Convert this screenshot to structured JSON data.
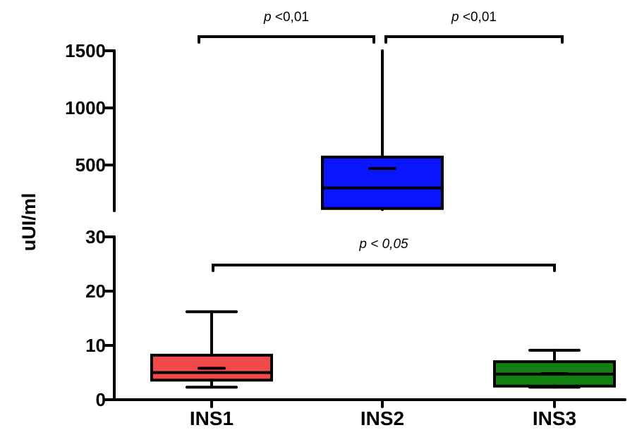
{
  "chart_data": {
    "type": "box",
    "ylabel": "uUI/ml",
    "broken_y_axis": true,
    "y_segments": [
      {
        "range": [
          0,
          30
        ],
        "ticks": [
          0,
          10,
          20,
          30
        ],
        "tick_labels": [
          "0",
          "10",
          "20",
          "30"
        ]
      },
      {
        "range": [
          100,
          1500
        ],
        "ticks": [
          500,
          1000,
          1500
        ],
        "tick_labels": [
          "500",
          "1000",
          "1500"
        ]
      }
    ],
    "categories": [
      "INS1",
      "INS2",
      "INS3"
    ],
    "boxes": [
      {
        "category": "INS1",
        "color": "#f04a4a",
        "min": 2.3,
        "q1": 3.6,
        "median": 5.0,
        "mean": 5.8,
        "q3": 8.2,
        "max": 16.2
      },
      {
        "category": "INS2",
        "color": "#0a14ff",
        "min": 110,
        "q1": 120,
        "median": 300,
        "mean": 470,
        "q3": 570,
        "max": 1500
      },
      {
        "category": "INS3",
        "color": "#118011",
        "min": 2.3,
        "q1": 2.5,
        "median": 4.7,
        "mean": 4.8,
        "q3": 7.0,
        "max": 9.1
      }
    ],
    "significance": [
      {
        "from": "INS1",
        "to": "INS2",
        "segment": "upper",
        "label_italic": "p",
        "label_rest": " <0,01"
      },
      {
        "from": "INS2",
        "to": "INS3",
        "segment": "upper",
        "label_italic": "p",
        "label_rest": " <0,01"
      },
      {
        "from": "INS1",
        "to": "INS3",
        "segment": "lower",
        "label_italic": "p < 0,05",
        "label_rest": ""
      }
    ],
    "grid": false,
    "legend": "none"
  }
}
